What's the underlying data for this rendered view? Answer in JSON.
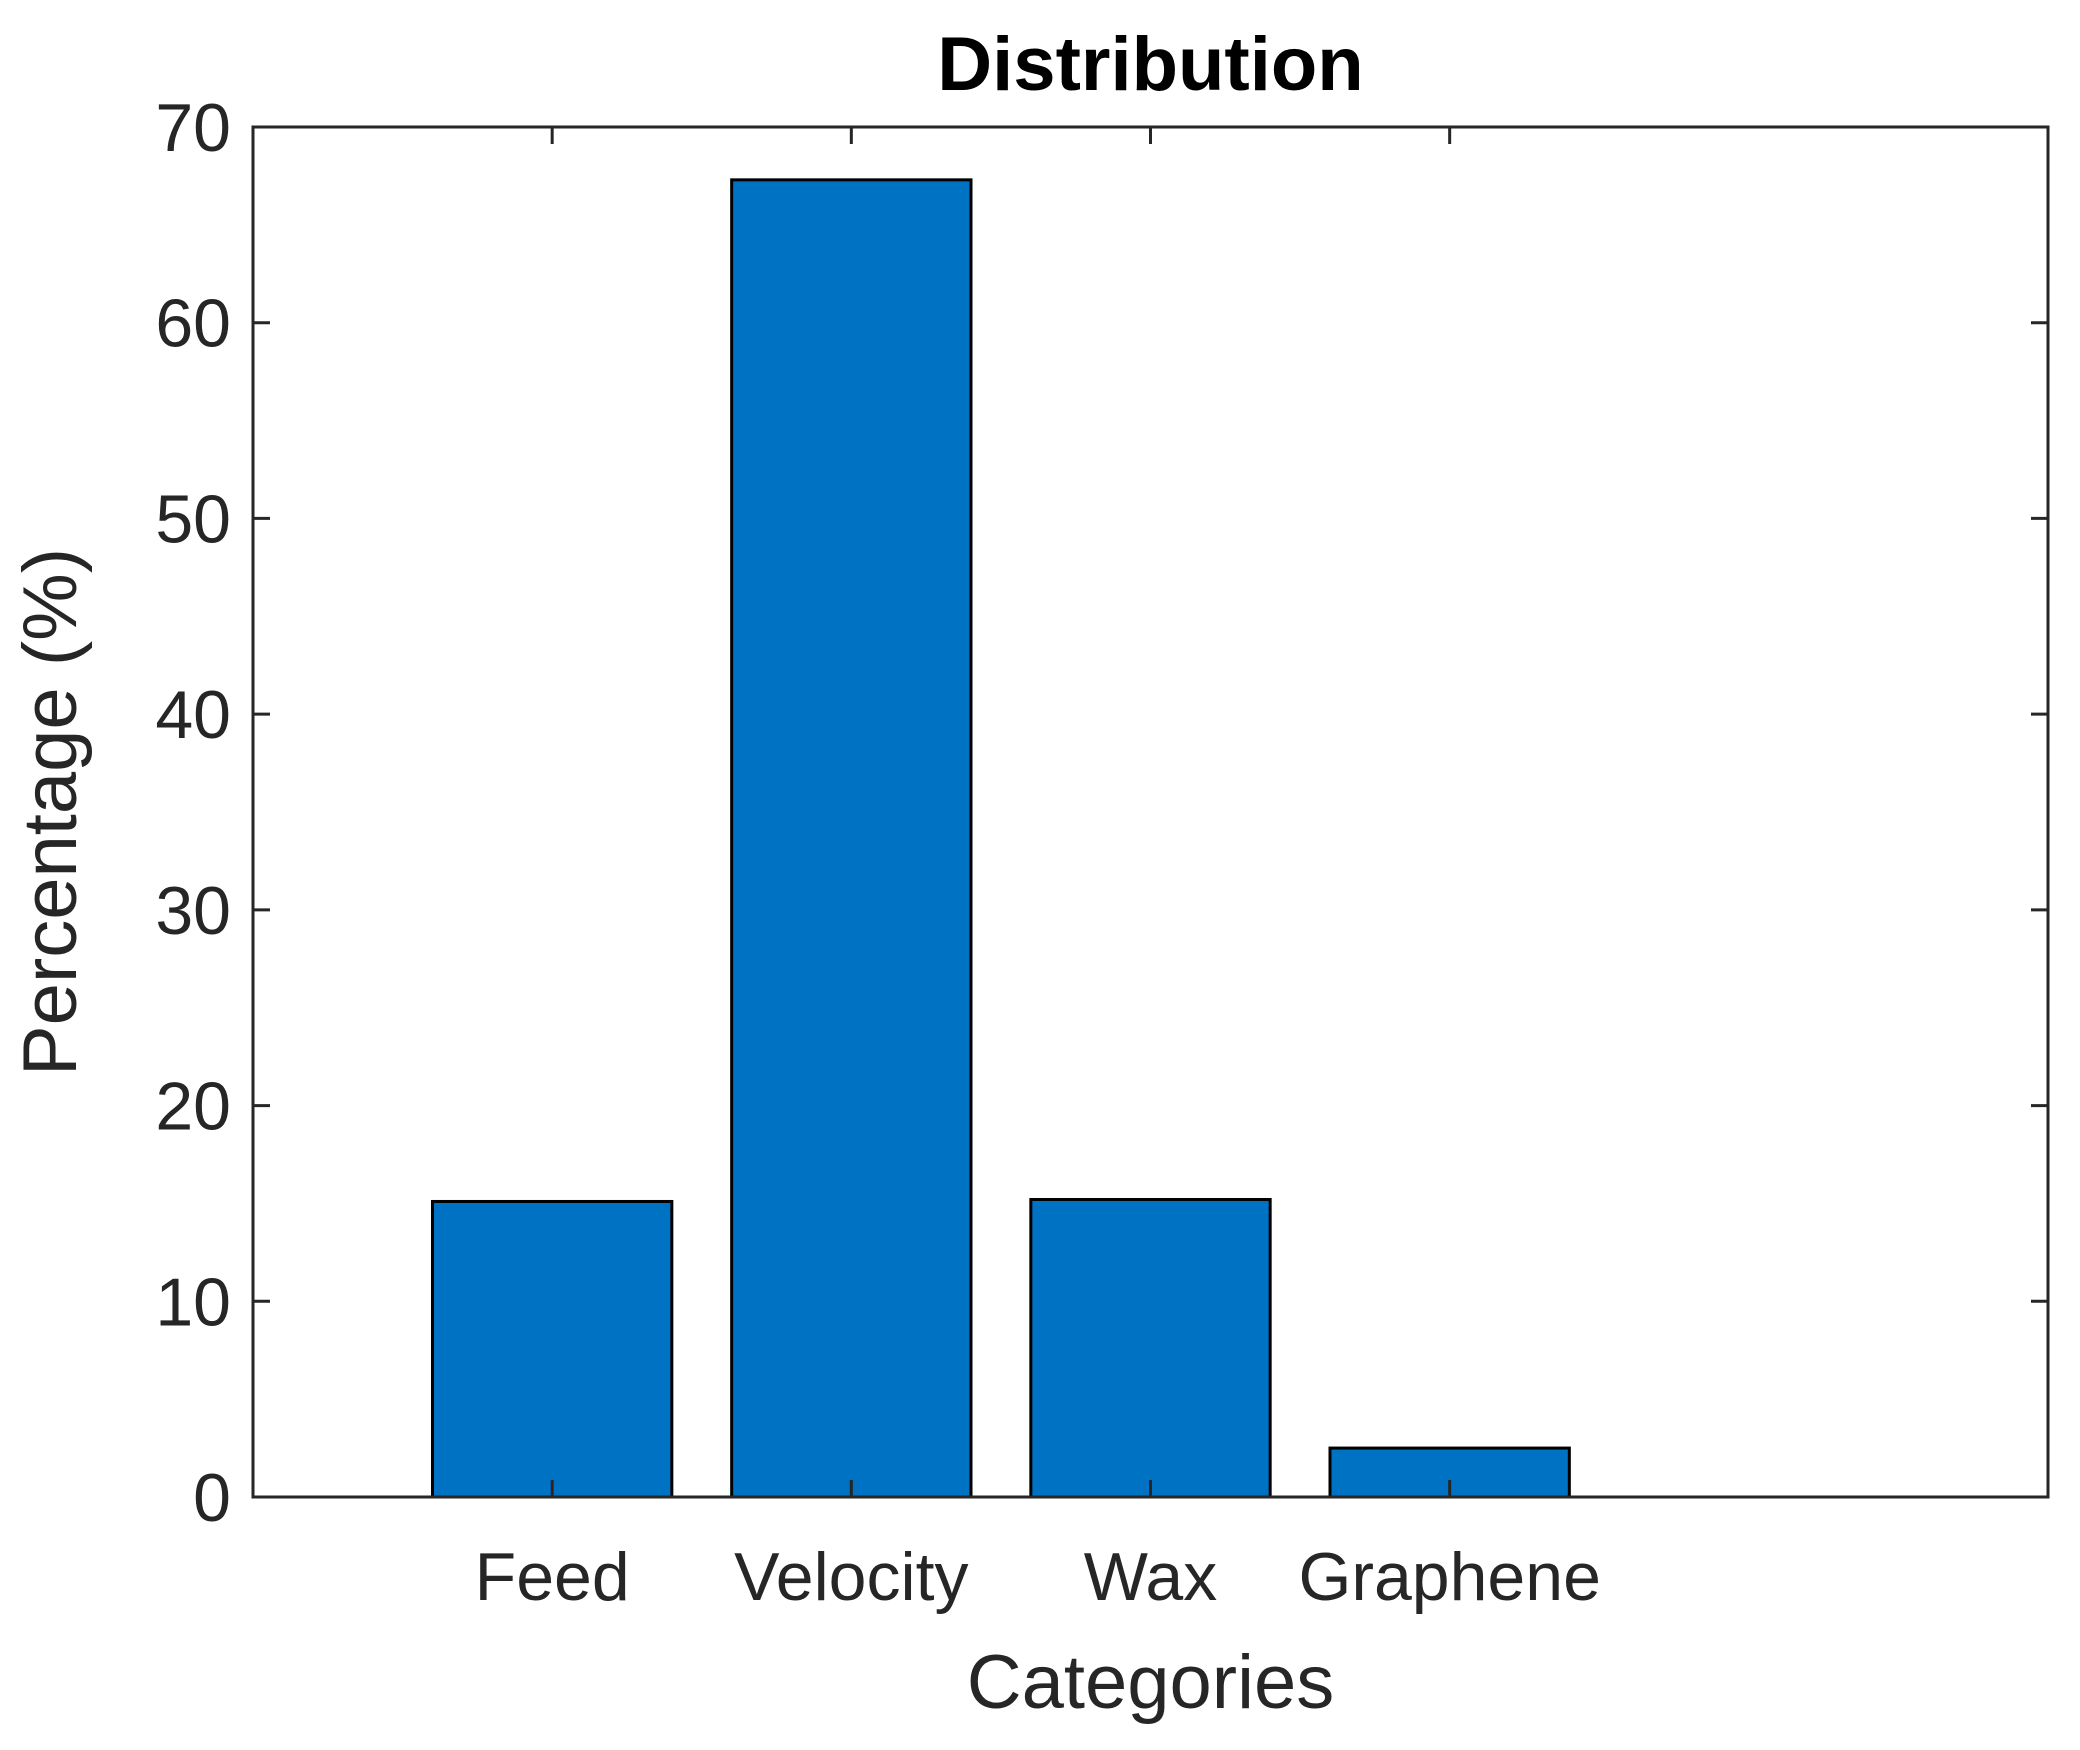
{
  "chart_data": {
    "type": "bar",
    "title": "Distribution",
    "xlabel": "Categories",
    "ylabel": "Percentage (%)",
    "categories": [
      "Feed",
      "Velocity",
      "Wax",
      "Graphene"
    ],
    "values": [
      15.1,
      67.3,
      15.2,
      2.5
    ],
    "ylim": [
      0,
      70
    ],
    "yticks": [
      0,
      10,
      20,
      30,
      40,
      50,
      60,
      70
    ],
    "ytick_labels": [
      "0",
      "10",
      "20",
      "30",
      "40",
      "50",
      "60",
      "70"
    ],
    "grid": false,
    "bar_color": "#0072c4",
    "edge_color": "#000000"
  }
}
